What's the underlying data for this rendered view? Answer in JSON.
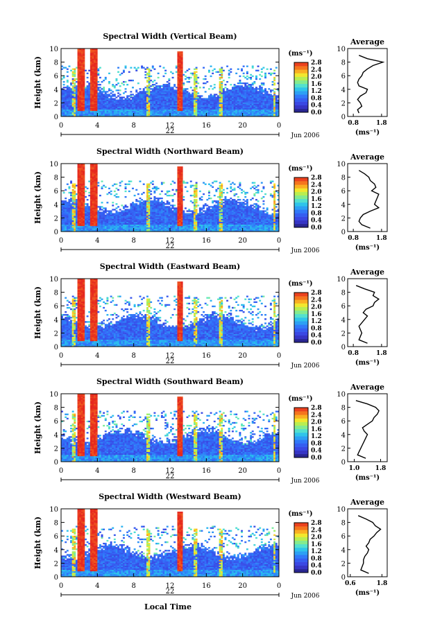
{
  "figure": {
    "xlabel": "Local Time",
    "date_label": "Jun 2006",
    "day_label": "22",
    "ylabel": "Height (km)",
    "colorbar_unit": "(ms⁻¹)",
    "profile_title": "Average",
    "profile_xlabel": "(ms⁻¹)"
  },
  "chart_data": [
    {
      "type": "heatmap",
      "title": "Spectral Width (Vertical Beam)",
      "xlabel": "",
      "ylabel": "Height (km)",
      "x_ticks": [
        "0",
        "4",
        "8",
        "12",
        "16",
        "20",
        "0"
      ],
      "y_ticks": [
        "0",
        "2",
        "4",
        "6",
        "8",
        "10"
      ],
      "xlim": [
        0,
        24
      ],
      "ylim": [
        0,
        10
      ],
      "colorbar_ticks": [
        "0.0",
        "0.4",
        "0.8",
        "1.2",
        "1.6",
        "2.0",
        "2.4",
        "2.8"
      ],
      "colorbar_range": [
        0,
        2.8
      ],
      "profile": {
        "title": "Average",
        "x_ticks": [
          "0.8",
          "1.8"
        ],
        "xlim": [
          0.6,
          2.0
        ],
        "y_ticks": [
          "0",
          "2",
          "4",
          "6",
          "8",
          "10"
        ],
        "height": [
          0.5,
          1,
          1.5,
          2,
          2.5,
          3,
          3.5,
          4,
          4.5,
          5,
          5.5,
          6,
          6.5,
          7,
          7.5,
          8,
          8.5,
          9
        ],
        "value": [
          1.0,
          0.95,
          1.1,
          1.05,
          0.95,
          1.05,
          1.25,
          1.3,
          1.0,
          0.95,
          1.0,
          1.1,
          1.15,
          1.3,
          1.5,
          1.85,
          1.3,
          1.0
        ]
      }
    },
    {
      "type": "heatmap",
      "title": "Spectral Width (Northward Beam)",
      "xlabel": "",
      "ylabel": "Height (km)",
      "x_ticks": [
        "0",
        "4",
        "8",
        "12",
        "16",
        "20",
        "0"
      ],
      "y_ticks": [
        "0",
        "2",
        "4",
        "6",
        "8",
        "10"
      ],
      "xlim": [
        0,
        24
      ],
      "ylim": [
        0,
        10
      ],
      "colorbar_ticks": [
        "0.0",
        "0.4",
        "0.8",
        "1.2",
        "1.6",
        "2.0",
        "2.4",
        "2.8"
      ],
      "colorbar_range": [
        0,
        2.8
      ],
      "profile": {
        "title": "Average",
        "x_ticks": [
          "0.8",
          "1.8"
        ],
        "xlim": [
          0.6,
          2.0
        ],
        "y_ticks": [
          "0",
          "2",
          "4",
          "6",
          "8",
          "10"
        ],
        "height": [
          0.5,
          1,
          1.5,
          2,
          2.5,
          3,
          3.5,
          4,
          4.5,
          5,
          5.5,
          6,
          6.5,
          7,
          7.5,
          8,
          8.5,
          9
        ],
        "value": [
          1.4,
          1.1,
          1.0,
          1.05,
          1.15,
          1.4,
          1.7,
          1.55,
          1.6,
          1.65,
          1.7,
          1.45,
          1.6,
          1.55,
          1.4,
          1.35,
          1.2,
          1.0
        ]
      }
    },
    {
      "type": "heatmap",
      "title": "Spectral Width (Eastward Beam)",
      "xlabel": "",
      "ylabel": "Height (km)",
      "x_ticks": [
        "0",
        "4",
        "8",
        "12",
        "16",
        "20",
        "0"
      ],
      "y_ticks": [
        "0",
        "2",
        "4",
        "6",
        "8",
        "10"
      ],
      "xlim": [
        0,
        24
      ],
      "ylim": [
        0,
        10
      ],
      "colorbar_ticks": [
        "0.0",
        "0.4",
        "0.8",
        "1.2",
        "1.6",
        "2.0",
        "2.4",
        "2.8"
      ],
      "colorbar_range": [
        0,
        2.8
      ],
      "profile": {
        "title": "Average",
        "x_ticks": [
          "0.8",
          "1.8"
        ],
        "xlim": [
          0.6,
          2.0
        ],
        "y_ticks": [
          "0",
          "2",
          "4",
          "6",
          "8",
          "10"
        ],
        "height": [
          0.5,
          1,
          1.5,
          2,
          2.5,
          3,
          3.5,
          4,
          4.5,
          5,
          5.5,
          6,
          6.5,
          7,
          7.5,
          8,
          8.5,
          9
        ],
        "value": [
          1.3,
          1.0,
          1.05,
          1.1,
          1.05,
          1.0,
          1.1,
          1.2,
          1.3,
          1.15,
          1.25,
          1.5,
          1.55,
          1.7,
          1.5,
          1.55,
          1.2,
          0.9
        ]
      }
    },
    {
      "type": "heatmap",
      "title": "Spectral Width (Southward Beam)",
      "xlabel": "",
      "ylabel": "Height (km)",
      "x_ticks": [
        "0",
        "4",
        "8",
        "12",
        "16",
        "20",
        "0"
      ],
      "y_ticks": [
        "0",
        "2",
        "4",
        "6",
        "8",
        "10"
      ],
      "xlim": [
        0,
        24
      ],
      "ylim": [
        0,
        10
      ],
      "colorbar_ticks": [
        "0.0",
        "0.4",
        "0.8",
        "1.2",
        "1.6",
        "2.0",
        "2.4",
        "2.8"
      ],
      "colorbar_range": [
        0,
        2.8
      ],
      "profile": {
        "title": "Average",
        "x_ticks": [
          "1.0",
          "1.8"
        ],
        "xlim": [
          0.8,
          2.0
        ],
        "y_ticks": [
          "0",
          "2",
          "4",
          "6",
          "8",
          "10"
        ],
        "height": [
          0.5,
          1,
          1.5,
          2,
          2.5,
          3,
          3.5,
          4,
          4.5,
          5,
          5.5,
          6,
          6.5,
          7,
          7.5,
          8,
          8.5,
          9
        ],
        "value": [
          1.35,
          1.1,
          1.15,
          1.2,
          1.25,
          1.3,
          1.35,
          1.4,
          1.3,
          1.25,
          1.4,
          1.55,
          1.6,
          1.7,
          1.75,
          1.65,
          1.4,
          1.05
        ]
      }
    },
    {
      "type": "heatmap",
      "title": "Spectral Width (Westward Beam)",
      "xlabel": "Local Time",
      "ylabel": "Height (km)",
      "x_ticks": [
        "0",
        "4",
        "8",
        "12",
        "16",
        "20",
        "0"
      ],
      "y_ticks": [
        "0",
        "2",
        "4",
        "6",
        "8",
        "10"
      ],
      "xlim": [
        0,
        24
      ],
      "ylim": [
        0,
        10
      ],
      "colorbar_ticks": [
        "0.0",
        "0.4",
        "0.8",
        "1.2",
        "1.6",
        "2.0",
        "2.4",
        "2.8"
      ],
      "colorbar_range": [
        0,
        2.8
      ],
      "profile": {
        "title": "Average",
        "x_ticks": [
          "0.6",
          "1.8"
        ],
        "xlim": [
          0.5,
          2.0
        ],
        "y_ticks": [
          "0",
          "2",
          "4",
          "6",
          "8",
          "10"
        ],
        "height": [
          0.5,
          1,
          1.5,
          2,
          2.5,
          3,
          3.5,
          4,
          4.5,
          5,
          5.5,
          6,
          6.5,
          7,
          7.5,
          8,
          8.5,
          9
        ],
        "value": [
          1.3,
          1.0,
          1.05,
          1.1,
          1.1,
          1.15,
          1.25,
          1.3,
          1.2,
          1.3,
          1.35,
          1.5,
          1.6,
          1.75,
          1.55,
          1.45,
          1.2,
          0.9
        ]
      }
    }
  ]
}
